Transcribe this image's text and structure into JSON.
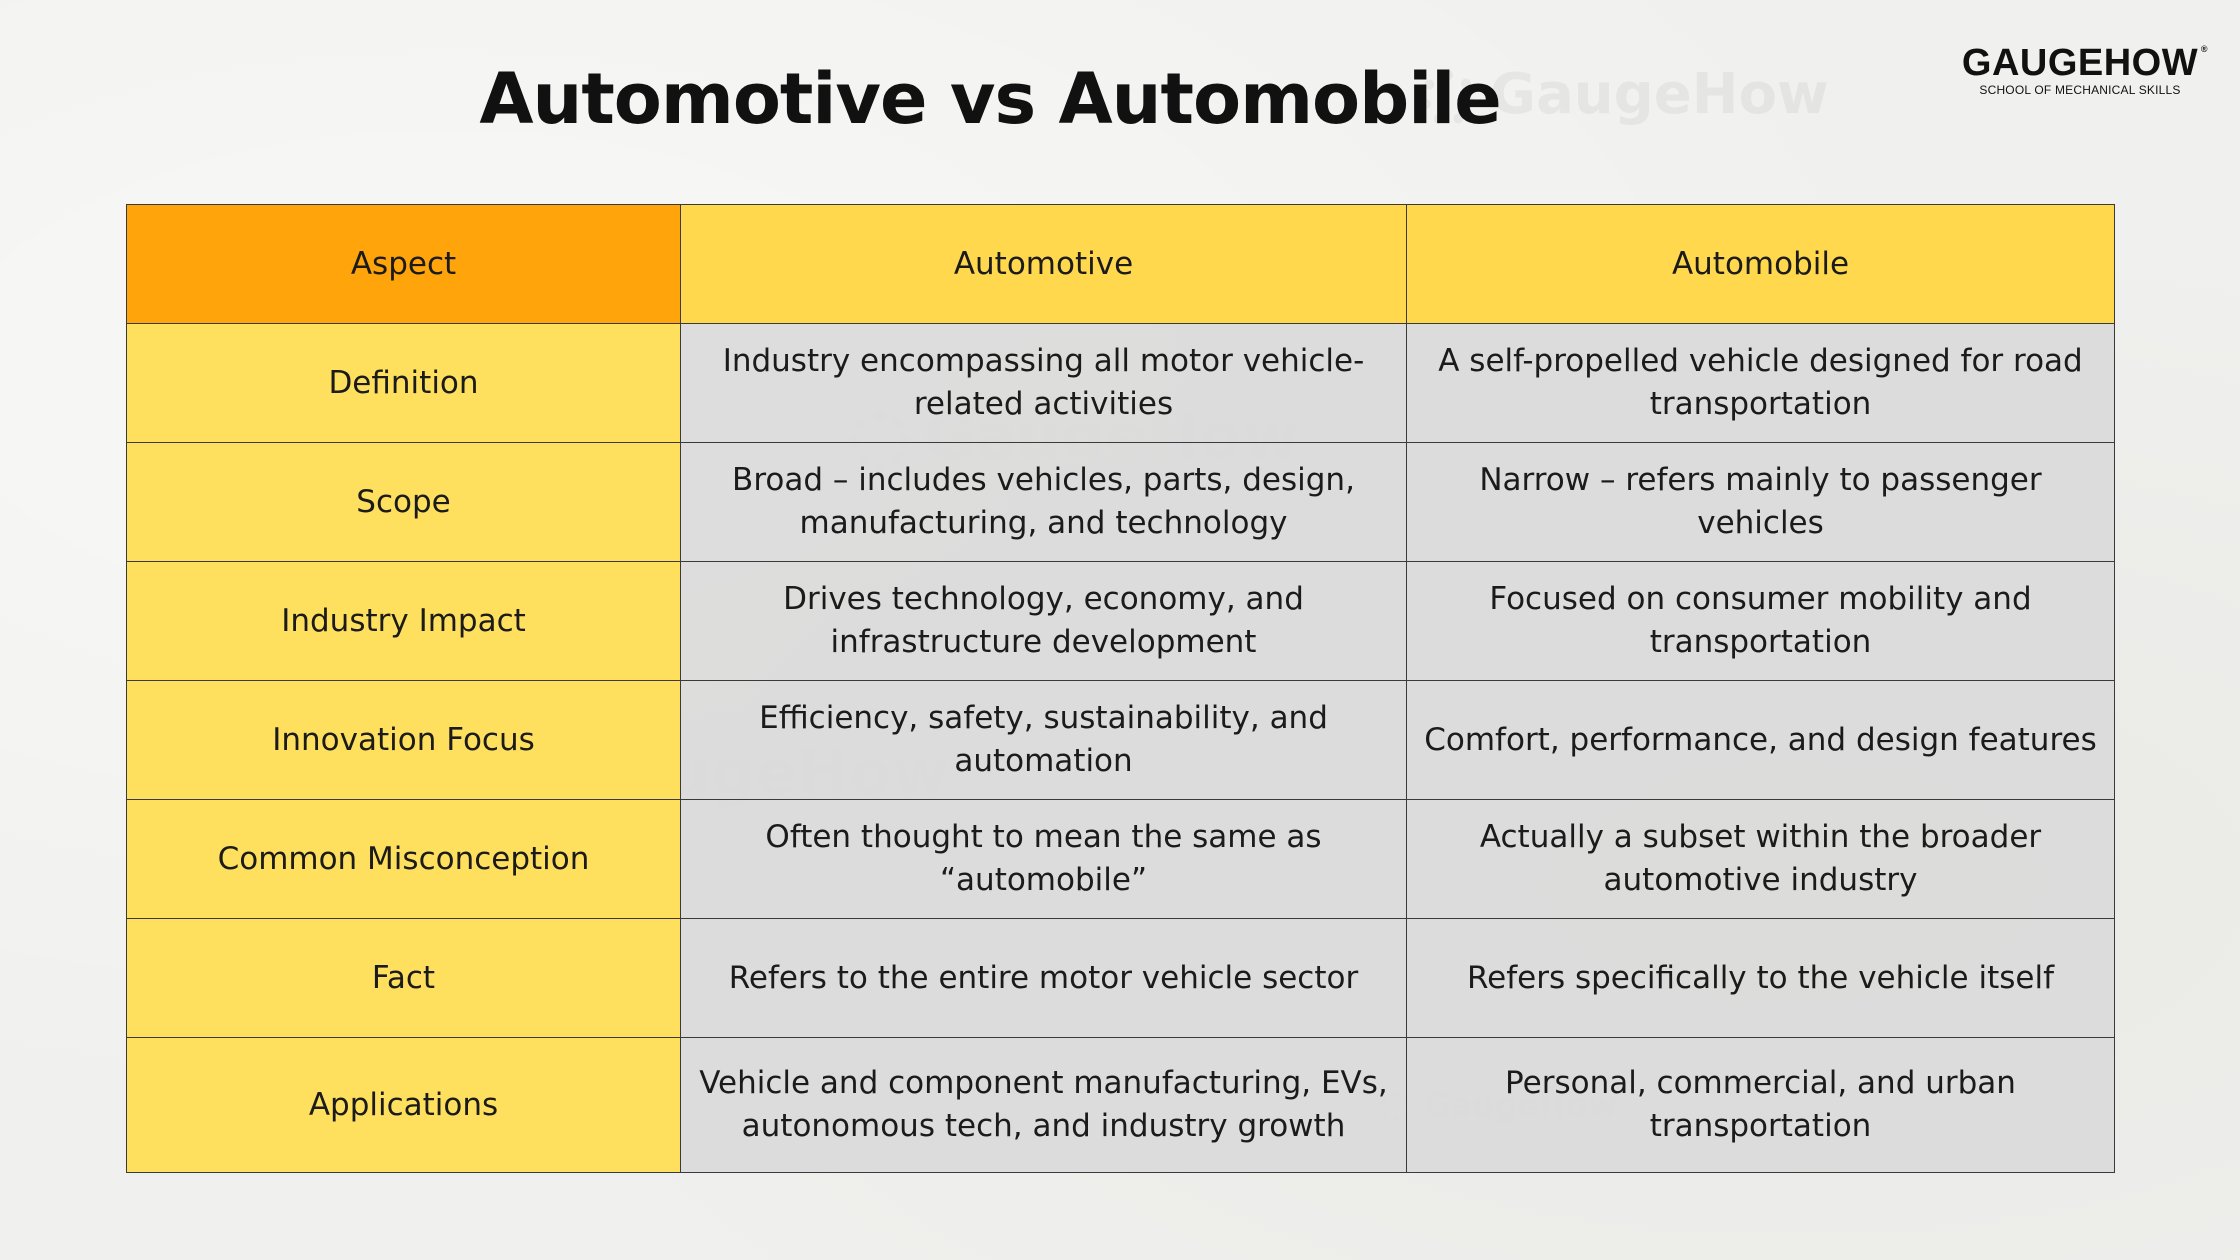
{
  "title": "Automotive vs Automobile",
  "logo": {
    "name": "GAUGEHOW",
    "registered": "®",
    "tagline": "SCHOOL OF MECHANICAL SKILLS"
  },
  "watermark_text": "GaugeHow",
  "colors": {
    "aspect_header": "#ffa40a",
    "column_header": "#ffd84d",
    "aspect_column": "#ffe05e",
    "body_cell": "#dadada"
  },
  "table": {
    "headers": [
      "Aspect",
      "Automotive",
      "Automobile"
    ],
    "rows": [
      {
        "aspect": "Definition",
        "automotive": "Industry encompassing all motor vehicle-related activities",
        "automobile": "A self-propelled vehicle designed for road transportation"
      },
      {
        "aspect": "Scope",
        "automotive": "Broad – includes vehicles, parts, design, manufacturing, and technology",
        "automobile": "Narrow – refers mainly to passenger vehicles"
      },
      {
        "aspect": "Industry Impact",
        "automotive": "Drives technology, economy, and infrastructure development",
        "automobile": "Focused on consumer mobility and transportation"
      },
      {
        "aspect": "Innovation Focus",
        "automotive": "Efficiency, safety, sustainability, and automation",
        "automobile": "Comfort, performance, and design features"
      },
      {
        "aspect": "Common Misconception",
        "automotive": "Often thought to mean the same as “automobile”",
        "automobile": "Actually a subset within the broader automotive industry"
      },
      {
        "aspect": "Fact",
        "automotive": "Refers to the entire motor vehicle sector",
        "automobile": "Refers specifically to the vehicle itself"
      },
      {
        "aspect": "Applications",
        "automotive": "Vehicle and component manufacturing, EVs, autonomous tech, and industry growth",
        "automobile": "Personal, commercial, and urban transportation"
      }
    ]
  }
}
